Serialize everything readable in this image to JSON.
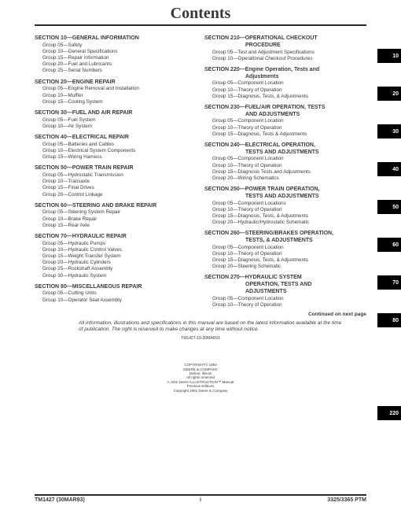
{
  "title": "Contents",
  "cols": {
    "left": [
      {
        "heading": "SECTION 10—GENERAL INFORMATION",
        "groups": [
          "Group 05—Safety",
          "Group 10—General Specifications",
          "Group 15—Repair Information",
          "Group 20—Fuel and Lubricants",
          "Group 25—Serial Numbers"
        ]
      },
      {
        "heading": "SECTION 20—ENGINE REPAIR",
        "groups": [
          "Group 05—Engine Removal and Installation",
          "Group 10—Muffler",
          "Group 15—Cooling System"
        ]
      },
      {
        "heading": "SECTION 30—FUEL AND AIR REPAIR",
        "groups": [
          "Group 05—Fuel System",
          "Group 10—Air System"
        ]
      },
      {
        "heading": "SECTION 40—ELECTRICAL REPAIR",
        "groups": [
          "Group 05—Batteries and Cables",
          "Group 10—Electrical System Components",
          "Group 15—Wiring Harness"
        ]
      },
      {
        "heading": "SECTION 50—POWER TRAIN REPAIR",
        "groups": [
          "Group 05—Hydrostatic Transmission",
          "Group 10—Transaxle",
          "Group 15—Final Drives",
          "Group 20—Control Linkage"
        ]
      },
      {
        "heading": "SECTION 60—STEERING AND BRAKE REPAIR",
        "groups": [
          "Group 05—Steering System Repair",
          "Group 10—Brake Repair",
          "Group 15—Rear Axle"
        ]
      },
      {
        "heading": "SECTION 70—HYDRAULIC REPAIR",
        "groups": [
          "Group 05—Hydraulic Pumps",
          "Group 10—Hydraulic Control Valves",
          "Group 15—Weight Transfer System",
          "Group 20—Hydraulic Cylinders",
          "Group 25—Rockshaft Assembly",
          "Group 30—Hydraulic System"
        ]
      },
      {
        "heading": "SECTION 80—MISCELLANEOUS REPAIR",
        "groups": [
          "Group 05—Cutting Units",
          "Group 10—Operator Seat Assembly"
        ]
      }
    ],
    "right": [
      {
        "heading": "SECTION 210—OPERATIONAL CHECKOUT",
        "heading_cont": "PROCEDURE",
        "groups": [
          "Group 05—Test and Adjustment Specifications",
          "Group 10—Operational Checkout Procedures"
        ]
      },
      {
        "heading": "SECTION 220—Engine Operation, Tests and",
        "heading_cont": "Adjustments",
        "groups": [
          "Group 05—Component Location",
          "Group 10—Theory of Operation",
          "Group 15—Diagnosis, Tests, & Adjustments"
        ]
      },
      {
        "heading": "SECTION 230—FUEL/AIR OPERATION, TESTS",
        "heading_cont": "AND ADJUSTMENTS",
        "groups": [
          "Group 05—Component Location",
          "Group 10—Theory of Operation",
          "Group 15—Diagnosis, Tests & Adjustments"
        ]
      },
      {
        "heading": "SECTION 240—ELECTRICAL OPERATION,",
        "heading_cont": "TESTS AND ADJUSTMENTS",
        "groups": [
          "Group 05—Component Location",
          "Group 10—Theory of Operation",
          "Group 15—Diagnosis Tests and Adjustments",
          "Group 20—Wiring Schematics"
        ]
      },
      {
        "heading": "SECTION 250—POWER TRAIN OPERATION,",
        "heading_cont": "TESTS AND ADJUSTMENTS",
        "groups": [
          "Group 05—Component Locations",
          "Group 10—Theory of Operation",
          "Group 15—Diagnosis, Tests, & Adjustments",
          "Group 20—Hydraulic/Hydrostatic Schematic"
        ]
      },
      {
        "heading": "SECTION 260—STEERING/BRAKES OPERATION,",
        "heading_cont": "TESTS, & ADJUSTMENTS",
        "groups": [
          "Group 05—Component Location",
          "Group 10—Theory of Operation",
          "Group 15—Diagnosis, Tests, & Adjustments",
          "Group 20—Steering Schematic"
        ]
      },
      {
        "heading": "SECTION 270—HYDRAULIC SYSTEM",
        "heading_cont": "OPERATION, TESTS AND",
        "heading_cont2": "ADJUSTMENTS",
        "groups": [
          "Group 05—Component Location",
          "Group 10—Theory of Operation"
        ]
      }
    ]
  },
  "continued": "Continued on next page",
  "disclaimer": "All information, illustrations and specifications in this manual are based on the latest information available at the time of publication. The right is reserved to make changes at any time without notice.",
  "codeline": "TM1427-19-30MAR93",
  "copyright": {
    "l1": "COPYRIGHT© 1993",
    "l2": "DEERE & COMPANY",
    "l3": "Moline, Illinois",
    "l4": "All rights reserved",
    "l5": "A John Deere ILLUSTRUCTION™ Manual",
    "l6": "Previous Editions",
    "l7": "Copyright 1991 Deere & Company"
  },
  "footer": {
    "left": "TM1427 (30MAR93)",
    "mid": "i",
    "right": "3325/3365 PTM"
  },
  "tabs": [
    "10",
    "20",
    "30",
    "40",
    "50",
    "60",
    "70",
    "80",
    "220"
  ]
}
